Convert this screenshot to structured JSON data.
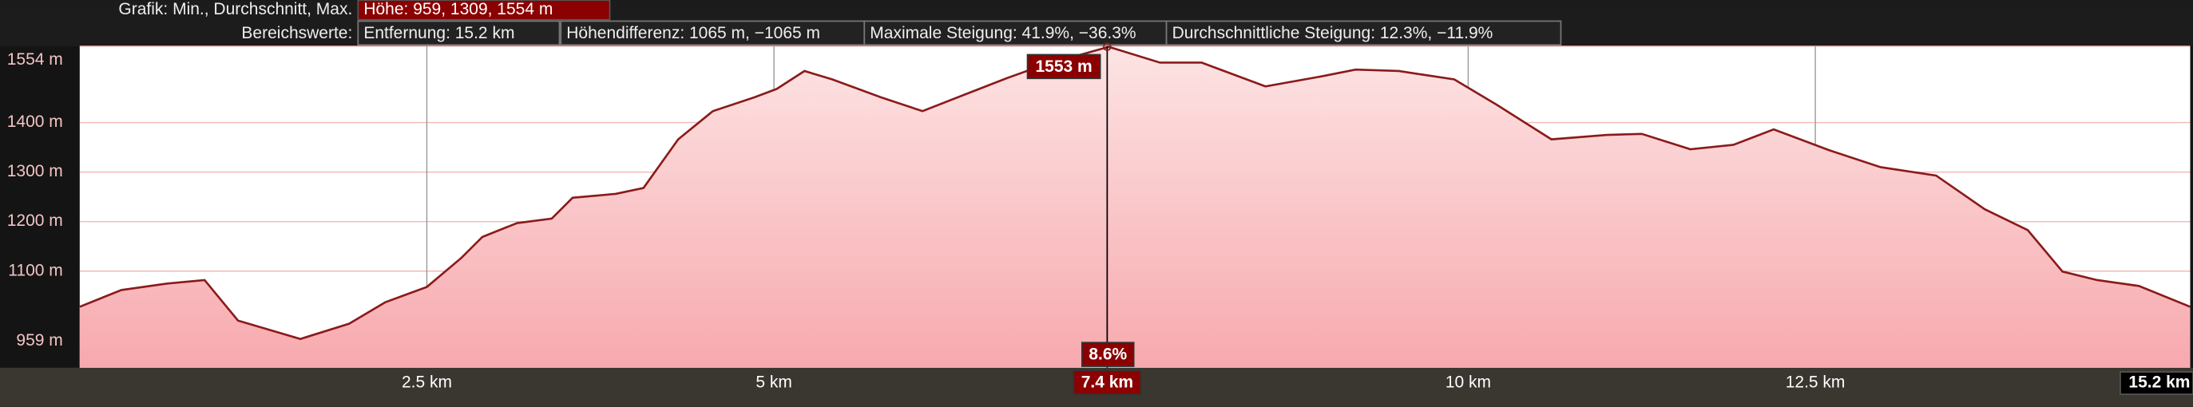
{
  "header": {
    "chart_label": "Grafik: Min., Durchschnitt, Max.",
    "chart_value": "Höhe: 959, 1309, 1554 m",
    "range_label": "Bereichswerte:",
    "range_values": [
      "Entfernung: 15.2 km",
      "Höhendifferenz: 1065 m, −1065 m",
      "Maximale Steigung: 41.9%, −36.3%",
      "Durchschnittliche Steigung: 12.3%, −11.9%"
    ]
  },
  "chart_data": {
    "type": "area",
    "color": "#8b1a1a",
    "x": [
      0,
      0.3,
      0.63,
      0.9,
      1.14,
      1.59,
      1.94,
      2.2,
      2.5,
      2.75,
      2.9,
      3.15,
      3.4,
      3.55,
      3.86,
      4.06,
      4.31,
      4.56,
      4.86,
      5.02,
      5.22,
      5.42,
      5.77,
      6.07,
      6.37,
      6.68,
      6.93,
      7.41,
      7.48,
      7.78,
      8.08,
      8.54,
      8.94,
      9.19,
      9.5,
      9.9,
      10.2,
      10.6,
      11.0,
      11.25,
      11.6,
      11.91,
      12.2,
      12.6,
      12.97,
      13.37,
      13.72,
      14.03,
      14.28,
      14.53,
      14.83,
      15.2
    ],
    "values": [
      1028,
      1062,
      1075,
      1082,
      1000,
      963,
      994,
      1037,
      1068,
      1127,
      1169,
      1197,
      1206,
      1248,
      1256,
      1268,
      1366,
      1423,
      1451,
      1468,
      1504,
      1487,
      1451,
      1423,
      1456,
      1490,
      1515,
      1553,
      1547,
      1521,
      1521,
      1473,
      1493,
      1507,
      1504,
      1487,
      1437,
      1366,
      1375,
      1377,
      1346,
      1355,
      1386,
      1344,
      1310,
      1293,
      1225,
      1183,
      1099,
      1082,
      1070,
      1028
    ],
    "xlim": [
      0,
      15.2
    ],
    "ylim": [
      905,
      1554
    ],
    "xticks": [
      {
        "value": 2.5,
        "label": "2.5 km"
      },
      {
        "value": 5,
        "label": "5 km"
      },
      {
        "value": 10,
        "label": "10 km"
      },
      {
        "value": 12.5,
        "label": "12.5 km"
      },
      {
        "value": 15.2,
        "label": "15.2 km"
      }
    ],
    "yticks": [
      {
        "value": 959,
        "label": "959 m"
      },
      {
        "value": 1100,
        "label": "1100 m"
      },
      {
        "value": 1200,
        "label": "1200 m"
      },
      {
        "value": 1300,
        "label": "1300 m"
      },
      {
        "value": 1400,
        "label": "1400 m"
      },
      {
        "value": 1554,
        "label": "1554 m"
      }
    ],
    "cursor": {
      "x": 7.4,
      "x_label": "7.4 km",
      "y": 1553,
      "y_label": "1553 m",
      "slope_label": "8.6%"
    }
  }
}
